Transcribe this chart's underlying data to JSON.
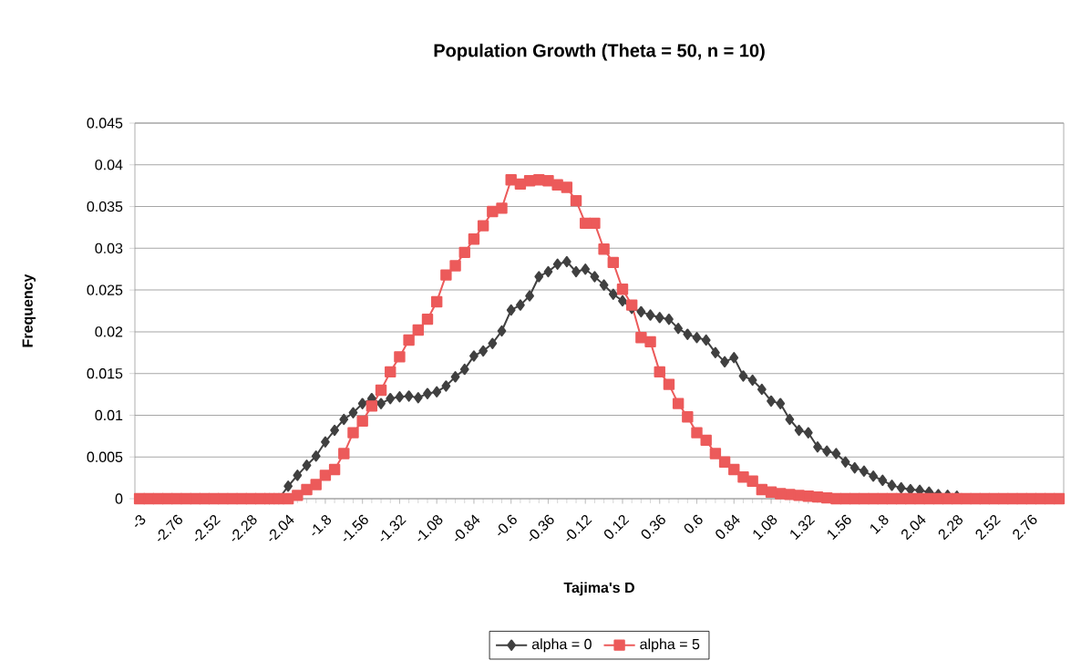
{
  "chart_data": {
    "type": "line",
    "title": "Population Growth (Theta = 50, n = 10)",
    "xlabel": "Tajima's D",
    "ylabel": "Frequency",
    "categories": [
      "-3",
      null,
      null,
      null,
      "-2.76",
      null,
      null,
      null,
      "-2.52",
      null,
      null,
      null,
      "-2.28",
      null,
      null,
      null,
      "-2.04",
      null,
      null,
      null,
      "-1.8",
      null,
      null,
      null,
      "-1.56",
      null,
      null,
      null,
      "-1.32",
      null,
      null,
      null,
      "-1.08",
      null,
      null,
      null,
      "-0.84",
      null,
      null,
      null,
      "-0.6",
      null,
      null,
      null,
      "-0.36",
      null,
      null,
      null,
      "-0.12",
      null,
      null,
      null,
      "0.12",
      null,
      null,
      null,
      "0.36",
      null,
      null,
      null,
      "0.6",
      null,
      null,
      null,
      "0.84",
      null,
      null,
      null,
      "1.08",
      null,
      null,
      null,
      "1.32",
      null,
      null,
      null,
      "1.56",
      null,
      null,
      null,
      "1.8",
      null,
      null,
      null,
      "2.04",
      null,
      null,
      null,
      "2.28",
      null,
      null,
      null,
      "2.52",
      null,
      null,
      null,
      "2.76",
      null,
      null,
      null
    ],
    "series": [
      {
        "name": "alpha = 0",
        "color": "#404040",
        "marker": "diamond",
        "values": [
          null,
          null,
          null,
          null,
          null,
          null,
          null,
          null,
          null,
          null,
          null,
          null,
          null,
          null,
          0,
          0,
          0.0015,
          0.0028,
          0.004,
          0.0051,
          0.0068,
          0.0082,
          0.0095,
          0.0103,
          0.0114,
          0.012,
          0.0114,
          0.012,
          0.0122,
          0.0123,
          0.0121,
          0.0126,
          0.0128,
          0.0135,
          0.0146,
          0.0155,
          0.0171,
          0.0177,
          0.0186,
          0.0201,
          0.0226,
          0.0232,
          0.0243,
          0.0266,
          0.0272,
          0.0281,
          0.0284,
          0.0272,
          0.0275,
          0.0266,
          0.0256,
          0.0245,
          0.0237,
          0.0228,
          0.0224,
          0.022,
          0.0217,
          0.0215,
          0.0204,
          0.0197,
          0.0193,
          0.019,
          0.0175,
          0.0164,
          0.0169,
          0.0147,
          0.0142,
          0.0131,
          0.0117,
          0.0114,
          0.0095,
          0.0082,
          0.0079,
          0.0062,
          0.0057,
          0.0054,
          0.0044,
          0.0037,
          0.0033,
          0.0027,
          0.0022,
          0.0016,
          0.0013,
          0.0011,
          0.001,
          0.0008,
          0.0005,
          0.0004,
          0.0003,
          null,
          null,
          null,
          null,
          null,
          null,
          null,
          null,
          null,
          null,
          null
        ]
      },
      {
        "name": "alpha = 5",
        "color": "#ec5a5a",
        "marker": "square",
        "values": [
          0,
          0,
          0,
          0,
          0,
          0,
          0,
          0,
          0,
          0,
          0,
          0,
          0,
          0,
          0,
          0,
          0,
          0.0004,
          0.0011,
          0.0017,
          0.0028,
          0.0035,
          0.0054,
          0.0079,
          0.0093,
          0.0111,
          0.013,
          0.0152,
          0.017,
          0.019,
          0.0202,
          0.0215,
          0.0236,
          0.0268,
          0.0279,
          0.0295,
          0.0311,
          0.0327,
          0.0344,
          0.0348,
          0.0382,
          0.0377,
          0.0381,
          0.0382,
          0.0381,
          0.0376,
          0.0373,
          0.0357,
          0.033,
          0.033,
          0.0299,
          0.0283,
          0.0251,
          0.0232,
          0.0193,
          0.0188,
          0.0152,
          0.0137,
          0.0114,
          0.0098,
          0.0079,
          0.007,
          0.0054,
          0.0044,
          0.0035,
          0.0026,
          0.0021,
          0.0011,
          0.0008,
          0.0006,
          0.0005,
          0.0004,
          0.0003,
          0.0002,
          0.0001,
          0,
          0,
          0,
          0,
          0,
          0,
          0,
          0,
          0,
          0,
          0,
          0,
          0,
          0,
          0,
          0,
          0,
          0,
          0,
          0,
          0,
          0,
          0,
          0,
          0
        ]
      }
    ],
    "ylim": [
      0,
      0.045
    ],
    "yticks": [
      0,
      0.005,
      0.01,
      0.015,
      0.02,
      0.025,
      0.03,
      0.035,
      0.04,
      0.045
    ],
    "grid": "y",
    "legend": "bottom",
    "line_style": "solid"
  }
}
